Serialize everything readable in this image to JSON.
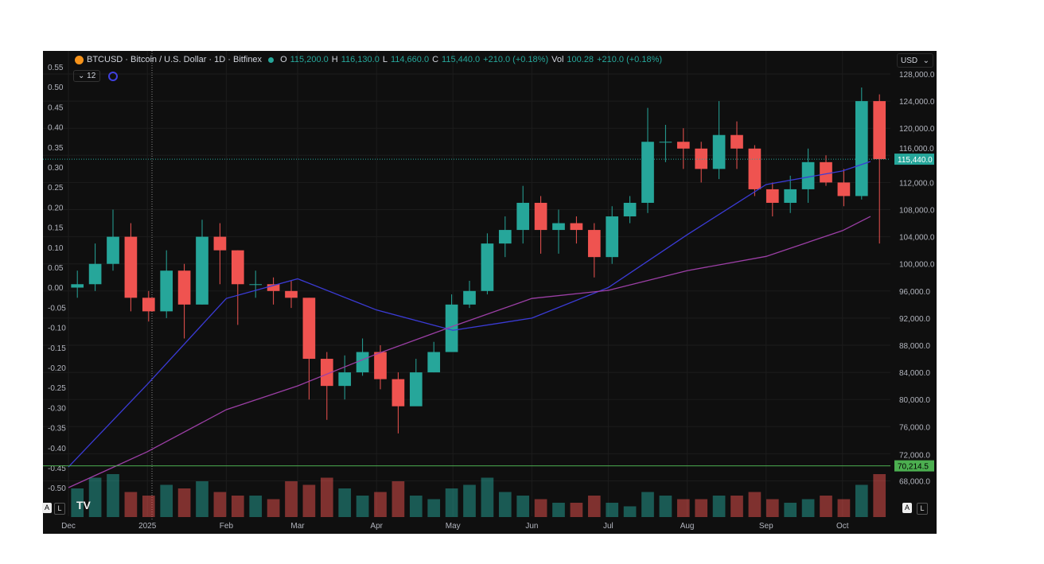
{
  "header": {
    "symbol": "BTCUSD · Bitcoin / U.S. Dollar · 1D · Bitfinex",
    "o_label": "O",
    "o": "115,200.0",
    "h_label": "H",
    "h": "116,130.0",
    "l_label": "L",
    "l": "114,660.0",
    "c_label": "C",
    "c": "115,440.0",
    "change": "+210.0 (+0.18%)",
    "vol_label": "Vol",
    "vol": "100.28",
    "vol_change": "+210.0 (+0.18%)",
    "indicator_count": "12",
    "currency": "USD",
    "auto_label": "A",
    "log_label": "L",
    "logo": "TV"
  },
  "colors": {
    "up": "#26a69a",
    "down": "#ef5350",
    "ma_fast": "#3b3bd6",
    "ma_slow": "#9c3fa6",
    "hline": "#4caf50",
    "bg": "#0f0f0f"
  },
  "chart_data": {
    "type": "candlestick",
    "price_axis": {
      "ticks": [
        68000,
        72000,
        76000,
        80000,
        84000,
        88000,
        92000,
        96000,
        100000,
        104000,
        108000,
        112000,
        116000,
        120000,
        124000,
        128000
      ],
      "range": [
        67000,
        129000
      ]
    },
    "left_axis": {
      "ticks": [
        "0.55",
        "0.50",
        "0.45",
        "0.40",
        "0.35",
        "0.30",
        "0.25",
        "0.20",
        "0.15",
        "0.10",
        "0.05",
        "0.00",
        "-0.05",
        "-0.10",
        "-0.15",
        "-0.20",
        "-0.25",
        "-0.30",
        "-0.35",
        "-0.40",
        "-0.45",
        "-0.50"
      ]
    },
    "x_ticks": [
      {
        "label": "Dec",
        "date": "2024-12-01"
      },
      {
        "label": "2025",
        "date": "2025-01-01"
      },
      {
        "label": "Feb",
        "date": "2025-02-01"
      },
      {
        "label": "Mar",
        "date": "2025-03-01"
      },
      {
        "label": "Apr",
        "date": "2025-04-01"
      },
      {
        "label": "May",
        "date": "2025-05-01"
      },
      {
        "label": "Jun",
        "date": "2025-06-01"
      },
      {
        "label": "Jul",
        "date": "2025-07-01"
      },
      {
        "label": "Aug",
        "date": "2025-08-01"
      },
      {
        "label": "Sep",
        "date": "2025-09-01"
      },
      {
        "label": "Oct",
        "date": "2025-10-01"
      }
    ],
    "candles_start": "2024-12-01",
    "candle_step_days": 7,
    "open_first": 96500,
    "closes": [
      97000,
      100000,
      104000,
      95000,
      93000,
      99000,
      94000,
      104000,
      102000,
      97000,
      97000,
      96000,
      95000,
      86000,
      82000,
      84000,
      87000,
      83000,
      79000,
      84000,
      87000,
      94000,
      96000,
      103000,
      105000,
      109000,
      105000,
      106000,
      105000,
      101000,
      107000,
      109000,
      118000,
      118000,
      117000,
      114000,
      119000,
      117000,
      111000,
      109000,
      111000,
      115000,
      112000,
      110000,
      124000,
      115440
    ],
    "highs": [
      99000,
      103000,
      108000,
      106000,
      96000,
      102000,
      100000,
      106500,
      106000,
      102000,
      99000,
      98000,
      97500,
      95000,
      87000,
      86500,
      89000,
      88000,
      84000,
      86000,
      88500,
      95500,
      97500,
      104500,
      107000,
      111500,
      110000,
      108000,
      107000,
      106000,
      108500,
      110000,
      123000,
      120500,
      120000,
      118000,
      124000,
      121000,
      117500,
      112000,
      113000,
      117000,
      116000,
      114000,
      126000,
      125000
    ],
    "lows": [
      95000,
      96000,
      99000,
      93000,
      91500,
      92000,
      89000,
      94000,
      97000,
      91000,
      95000,
      94000,
      93500,
      80000,
      77000,
      80000,
      83500,
      81500,
      75000,
      79500,
      84000,
      87000,
      93500,
      95500,
      101000,
      103000,
      101500,
      101500,
      103000,
      98000,
      100000,
      106000,
      107500,
      115000,
      114000,
      112000,
      112500,
      114000,
      110000,
      107000,
      107500,
      109000,
      111500,
      108500,
      109500,
      103000
    ],
    "volumes": [
      40,
      55,
      60,
      35,
      30,
      45,
      40,
      50,
      35,
      30,
      30,
      25,
      50,
      45,
      55,
      40,
      30,
      35,
      50,
      30,
      25,
      40,
      45,
      55,
      35,
      30,
      25,
      20,
      20,
      30,
      20,
      15,
      35,
      30,
      25,
      25,
      30,
      30,
      35,
      25,
      20,
      25,
      30,
      25,
      45,
      60
    ],
    "ma_fast": [
      [
        "2024-12-01",
        70050
      ],
      [
        "2025-01-01",
        82250
      ],
      [
        "2025-02-01",
        94900
      ],
      [
        "2025-03-01",
        97800
      ],
      [
        "2025-04-01",
        93200
      ],
      [
        "2025-05-01",
        90200
      ],
      [
        "2025-06-01",
        92000
      ],
      [
        "2025-07-01",
        96500
      ],
      [
        "2025-08-01",
        104300
      ],
      [
        "2025-09-01",
        111700
      ],
      [
        "2025-10-01",
        113700
      ],
      [
        "2025-10-12",
        115100
      ]
    ],
    "ma_slow": [
      [
        "2024-12-01",
        67000
      ],
      [
        "2025-01-01",
        72300
      ],
      [
        "2025-02-01",
        78500
      ],
      [
        "2025-03-01",
        82000
      ],
      [
        "2025-04-01",
        86700
      ],
      [
        "2025-05-01",
        90800
      ],
      [
        "2025-06-01",
        94900
      ],
      [
        "2025-07-01",
        96100
      ],
      [
        "2025-08-01",
        99000
      ],
      [
        "2025-09-01",
        101100
      ],
      [
        "2025-10-01",
        104900
      ],
      [
        "2025-10-12",
        107000
      ]
    ],
    "horizontal_line": {
      "value": 70214.5,
      "label": "70,214.5"
    },
    "last_price": {
      "value": 115440,
      "label": "115,440.0"
    }
  }
}
